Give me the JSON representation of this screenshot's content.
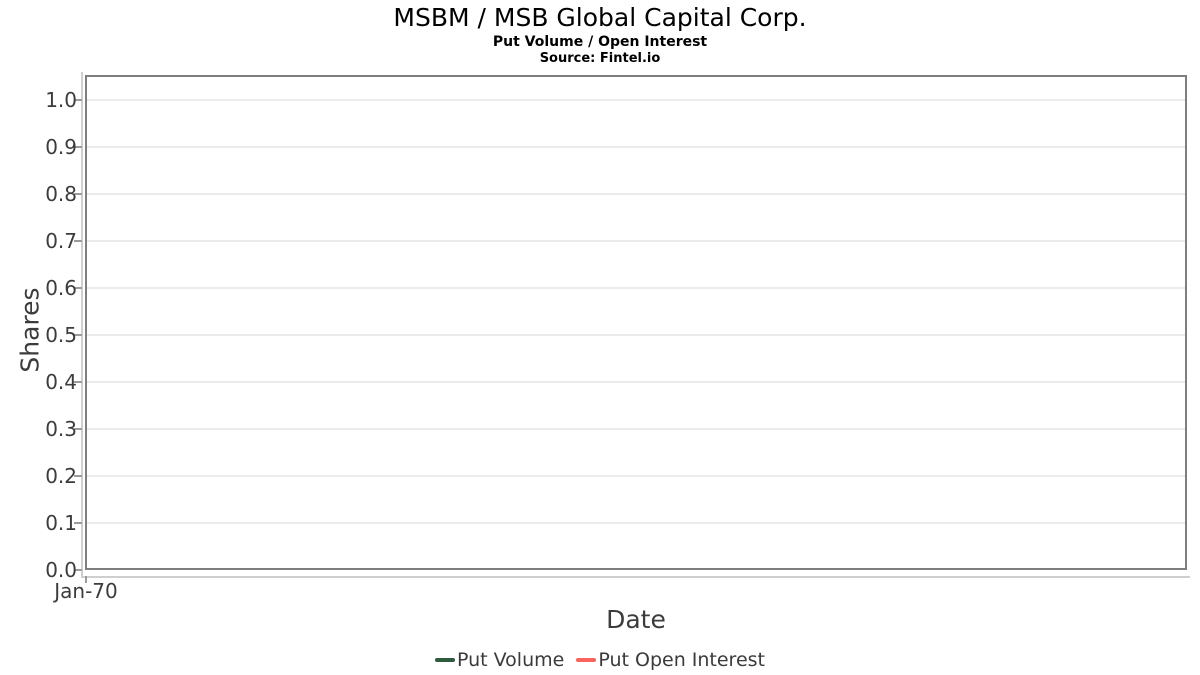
{
  "header": {
    "title": "MSBM / MSB Global Capital Corp.",
    "subtitle": "Put Volume / Open Interest",
    "source": "Source: Fintel.io"
  },
  "chart_data": {
    "type": "line",
    "title": "MSBM / MSB Global Capital Corp.",
    "subtitle": "Put Volume / Open Interest",
    "source_note": "Source: Fintel.io",
    "xlabel": "Date",
    "ylabel": "Shares",
    "ylim": [
      0.0,
      1.0
    ],
    "yticks": [
      "0.0",
      "0.1",
      "0.2",
      "0.3",
      "0.4",
      "0.5",
      "0.6",
      "0.7",
      "0.8",
      "0.9",
      "1.0"
    ],
    "xticks": [
      "Jan-70"
    ],
    "grid": true,
    "legend_position": "bottom-center",
    "series": [
      {
        "name": "Put Volume",
        "color": "#2e5b3e",
        "x": [],
        "values": []
      },
      {
        "name": "Put Open Interest",
        "color": "#f9655e",
        "x": [],
        "values": []
      }
    ]
  },
  "colors": {
    "plot_border": "#7e7e7e",
    "axis_line": "#cfcfcf",
    "gridline": "#ebebeb",
    "tick_text": "#3c3c3c",
    "title_text": "#000000"
  }
}
